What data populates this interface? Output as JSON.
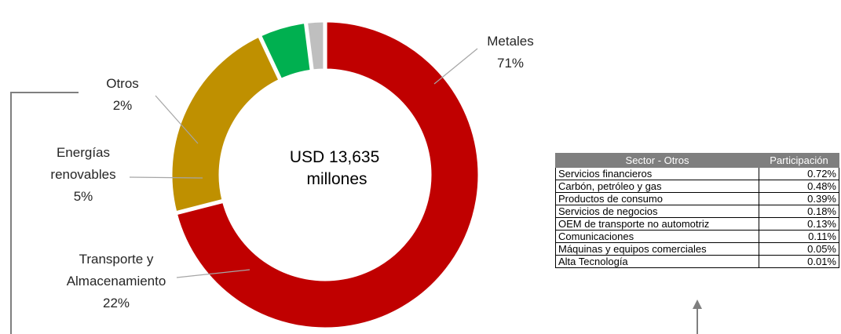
{
  "chart_data": {
    "type": "pie",
    "variant": "donut",
    "center_text": [
      "USD 13,635",
      "millones"
    ],
    "slices": [
      {
        "label": [
          "Metales"
        ],
        "value": 71,
        "value_label": "71%",
        "color": "#c00000"
      },
      {
        "label": [
          "Transporte y",
          "Almacenamiento"
        ],
        "value": 22,
        "value_label": "22%",
        "color": "#bf9000"
      },
      {
        "label": [
          "Energías",
          "renovables"
        ],
        "value": 5,
        "value_label": "5%",
        "color": "#00b050"
      },
      {
        "label": [
          "Otros"
        ],
        "value": 2,
        "value_label": "2%",
        "color": "#bfbfbf"
      }
    ]
  },
  "table": {
    "headers": [
      "Sector - Otros",
      "Participación"
    ],
    "rows": [
      [
        "Servicios financieros",
        "0.72%"
      ],
      [
        "Carbón, petróleo y gas",
        "0.48%"
      ],
      [
        "Productos de consumo",
        "0.39%"
      ],
      [
        "Servicios de negocios",
        "0.18%"
      ],
      [
        "OEM de transporte no automotriz",
        "0.13%"
      ],
      [
        "Comunicaciones",
        "0.11%"
      ],
      [
        "Máquinas y equipos comerciales",
        "0.05%"
      ],
      [
        "Alta Tecnología",
        "0.01%"
      ]
    ],
    "header_color": "#7f7f7f"
  }
}
